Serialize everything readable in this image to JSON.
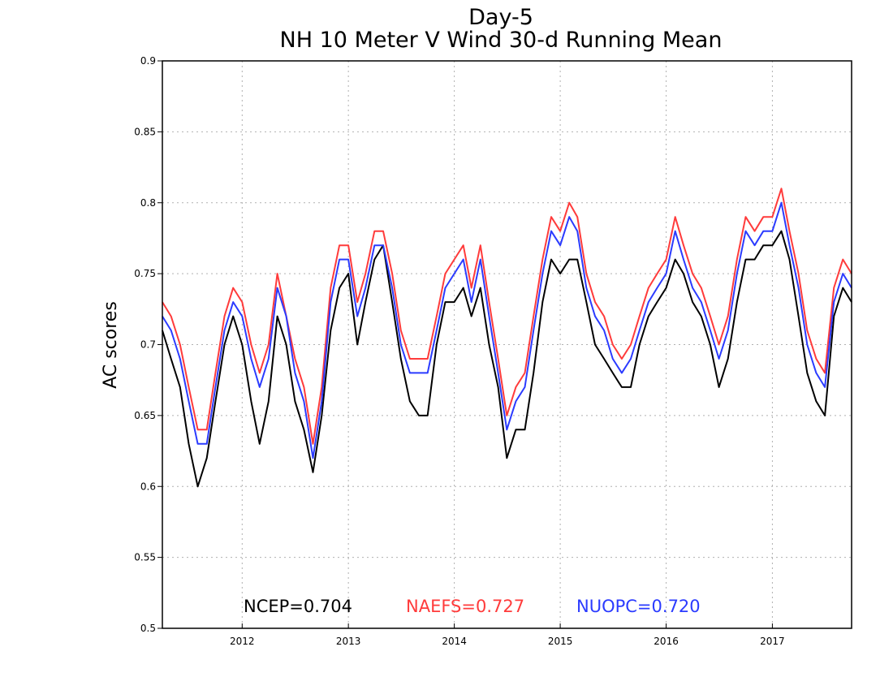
{
  "chart_data": {
    "type": "line",
    "title": "Day-5",
    "subtitle": "NH 10 Meter V Wind 30-d Running Mean",
    "xlabel": "",
    "ylabel": "AC scores",
    "x_tick_labels": [
      "2012",
      "2013",
      "2014",
      "2015",
      "2016",
      "2017"
    ],
    "xlim": [
      "2011-04-01",
      "2017-10-01"
    ],
    "ylim": [
      0.5,
      0.9
    ],
    "y_ticks": [
      0.5,
      0.55,
      0.6,
      0.65,
      0.7,
      0.75,
      0.8,
      0.85,
      0.9
    ],
    "y_tick_labels": [
      "0.5",
      "0.55",
      "0.6",
      "0.65",
      "0.7",
      "0.75",
      "0.8",
      "0.85",
      "0.9"
    ],
    "grid": true,
    "legend_placement": "bottom-center",
    "x": [
      "2011-04",
      "2011-05",
      "2011-06",
      "2011-07",
      "2011-08",
      "2011-09",
      "2011-10",
      "2011-11",
      "2011-12",
      "2012-01",
      "2012-02",
      "2012-03",
      "2012-04",
      "2012-05",
      "2012-06",
      "2012-07",
      "2012-08",
      "2012-09",
      "2012-10",
      "2012-11",
      "2012-12",
      "2013-01",
      "2013-02",
      "2013-03",
      "2013-04",
      "2013-05",
      "2013-06",
      "2013-07",
      "2013-08",
      "2013-09",
      "2013-10",
      "2013-11",
      "2013-12",
      "2014-01",
      "2014-02",
      "2014-03",
      "2014-04",
      "2014-05",
      "2014-06",
      "2014-07",
      "2014-08",
      "2014-09",
      "2014-10",
      "2014-11",
      "2014-12",
      "2015-01",
      "2015-02",
      "2015-03",
      "2015-04",
      "2015-05",
      "2015-06",
      "2015-07",
      "2015-08",
      "2015-09",
      "2015-10",
      "2015-11",
      "2015-12",
      "2016-01",
      "2016-02",
      "2016-03",
      "2016-04",
      "2016-05",
      "2016-06",
      "2016-07",
      "2016-08",
      "2016-09",
      "2016-10",
      "2016-11",
      "2016-12",
      "2017-01",
      "2017-02",
      "2017-03",
      "2017-04",
      "2017-05",
      "2017-06",
      "2017-07",
      "2017-08",
      "2017-09",
      "2017-10"
    ],
    "series": [
      {
        "name": "NCEP=0.704",
        "color": "#000000",
        "values": [
          0.71,
          0.69,
          0.67,
          0.63,
          0.6,
          0.62,
          0.66,
          0.7,
          0.72,
          0.7,
          0.66,
          0.63,
          0.66,
          0.72,
          0.7,
          0.66,
          0.64,
          0.61,
          0.65,
          0.71,
          0.74,
          0.75,
          0.7,
          0.73,
          0.76,
          0.77,
          0.73,
          0.69,
          0.66,
          0.65,
          0.65,
          0.7,
          0.73,
          0.73,
          0.74,
          0.72,
          0.74,
          0.7,
          0.67,
          0.62,
          0.64,
          0.64,
          0.68,
          0.73,
          0.76,
          0.75,
          0.76,
          0.76,
          0.73,
          0.7,
          0.69,
          0.68,
          0.67,
          0.67,
          0.7,
          0.72,
          0.73,
          0.74,
          0.76,
          0.75,
          0.73,
          0.72,
          0.7,
          0.67,
          0.69,
          0.73,
          0.76,
          0.76,
          0.77,
          0.77,
          0.78,
          0.76,
          0.72,
          0.68,
          0.66,
          0.65,
          0.72,
          0.74,
          0.73
        ]
      },
      {
        "name": "NAEFS=0.727",
        "color": "#ff3b3b",
        "values": [
          0.73,
          0.72,
          0.7,
          0.67,
          0.64,
          0.64,
          0.68,
          0.72,
          0.74,
          0.73,
          0.7,
          0.68,
          0.7,
          0.75,
          0.72,
          0.69,
          0.67,
          0.63,
          0.67,
          0.74,
          0.77,
          0.77,
          0.73,
          0.75,
          0.78,
          0.78,
          0.75,
          0.71,
          0.69,
          0.69,
          0.69,
          0.72,
          0.75,
          0.76,
          0.77,
          0.74,
          0.77,
          0.73,
          0.69,
          0.65,
          0.67,
          0.68,
          0.72,
          0.76,
          0.79,
          0.78,
          0.8,
          0.79,
          0.75,
          0.73,
          0.72,
          0.7,
          0.69,
          0.7,
          0.72,
          0.74,
          0.75,
          0.76,
          0.79,
          0.77,
          0.75,
          0.74,
          0.72,
          0.7,
          0.72,
          0.76,
          0.79,
          0.78,
          0.79,
          0.79,
          0.81,
          0.78,
          0.75,
          0.71,
          0.69,
          0.68,
          0.74,
          0.76,
          0.75
        ]
      },
      {
        "name": "NUOPC=0.720",
        "color": "#2b3bff",
        "values": [
          0.72,
          0.71,
          0.69,
          0.66,
          0.63,
          0.63,
          0.67,
          0.71,
          0.73,
          0.72,
          0.69,
          0.67,
          0.69,
          0.74,
          0.72,
          0.68,
          0.66,
          0.62,
          0.66,
          0.73,
          0.76,
          0.76,
          0.72,
          0.74,
          0.77,
          0.77,
          0.74,
          0.7,
          0.68,
          0.68,
          0.68,
          0.71,
          0.74,
          0.75,
          0.76,
          0.73,
          0.76,
          0.72,
          0.68,
          0.64,
          0.66,
          0.67,
          0.71,
          0.75,
          0.78,
          0.77,
          0.79,
          0.78,
          0.74,
          0.72,
          0.71,
          0.69,
          0.68,
          0.69,
          0.71,
          0.73,
          0.74,
          0.75,
          0.78,
          0.76,
          0.74,
          0.73,
          0.71,
          0.69,
          0.71,
          0.75,
          0.78,
          0.77,
          0.78,
          0.78,
          0.8,
          0.77,
          0.74,
          0.7,
          0.68,
          0.67,
          0.73,
          0.75,
          0.74
        ]
      }
    ]
  }
}
